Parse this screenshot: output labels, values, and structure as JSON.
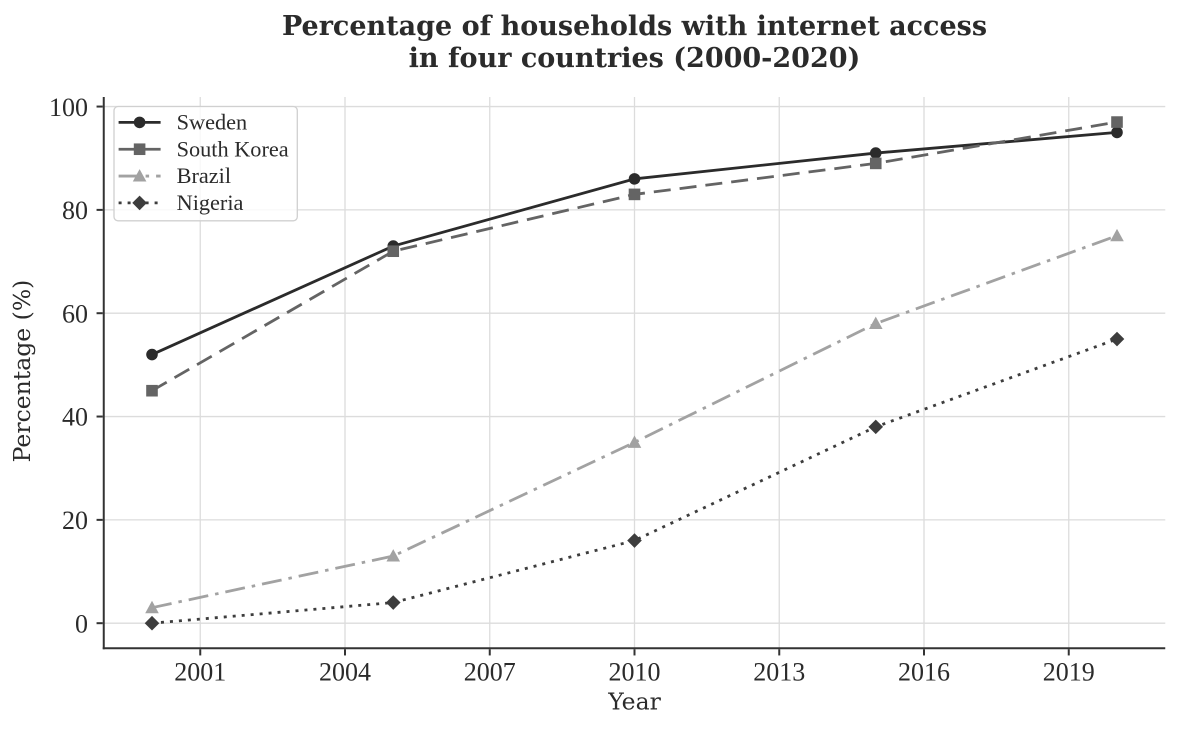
{
  "chart_data": {
    "type": "line",
    "title": "Percentage of households with internet access\nin four countries (2000-2020)",
    "xlabel": "Year",
    "ylabel": "Percentage (%)",
    "x": [
      2000,
      2005,
      2010,
      2015,
      2020
    ],
    "series": [
      {
        "name": "Sweden",
        "values": [
          52,
          73,
          86,
          91,
          95
        ],
        "color": "#2b2b2b",
        "linestyle": "solid",
        "marker": "circle"
      },
      {
        "name": "South Korea",
        "values": [
          45,
          72,
          83,
          89,
          97
        ],
        "color": "#646464",
        "linestyle": "dashed",
        "marker": "square"
      },
      {
        "name": "Brazil",
        "values": [
          3,
          13,
          35,
          58,
          75
        ],
        "color": "#a2a2a2",
        "linestyle": "dashdot",
        "marker": "triangle"
      },
      {
        "name": "Nigeria",
        "values": [
          0,
          4,
          16,
          38,
          55
        ],
        "color": "#3d3d3d",
        "linestyle": "dotted",
        "marker": "diamond"
      }
    ],
    "xticks": [
      2001,
      2004,
      2007,
      2010,
      2013,
      2016,
      2019
    ],
    "yticks": [
      0,
      20,
      40,
      60,
      80,
      100
    ],
    "xlim": [
      1999,
      2021
    ],
    "ylim": [
      -4.85,
      101.85
    ],
    "grid": true,
    "legend_position": "upper left",
    "colors": {
      "background": "#ffffff",
      "text": "#2b2b2b",
      "grid": "#dcdcdc",
      "spine": "#333333",
      "legend_border": "#d0d0d0",
      "legend_bg": "#ffffff"
    }
  }
}
